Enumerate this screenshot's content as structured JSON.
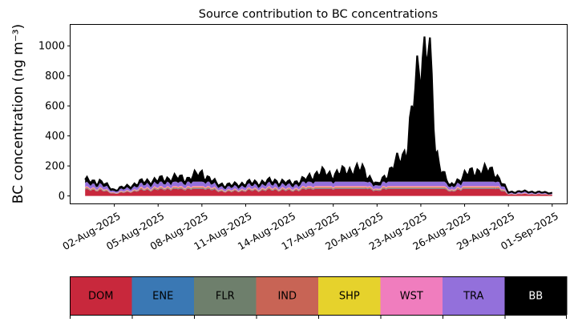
{
  "chart_data": {
    "type": "area",
    "stacked": true,
    "title": "Source contribution to BC concentrations",
    "ylabel": "BC concentration (ng m⁻³)",
    "xlabel": "",
    "x_start": "2025-07-31",
    "x_end": "2025-09-01",
    "xlim": [
      "2025-07-30",
      "2025-09-02"
    ],
    "ylim": [
      -50,
      1140
    ],
    "x_ticks": [
      "02-Aug-2025",
      "05-Aug-2025",
      "08-Aug-2025",
      "11-Aug-2025",
      "14-Aug-2025",
      "17-Aug-2025",
      "20-Aug-2025",
      "23-Aug-2025",
      "26-Aug-2025",
      "29-Aug-2025",
      "01-Sep-2025"
    ],
    "y_ticks": [
      0,
      200,
      400,
      600,
      800,
      1000
    ],
    "total_profile": [
      [
        "2025-07-31",
        100
      ],
      [
        "2025-08-01",
        95
      ],
      [
        "2025-08-02",
        40
      ],
      [
        "2025-08-03",
        65
      ],
      [
        "2025-08-04",
        95
      ],
      [
        "2025-08-05",
        105
      ],
      [
        "2025-08-06",
        120
      ],
      [
        "2025-08-07",
        115
      ],
      [
        "2025-08-08",
        150
      ],
      [
        "2025-08-09",
        80
      ],
      [
        "2025-08-10",
        70
      ],
      [
        "2025-08-11",
        85
      ],
      [
        "2025-08-12",
        90
      ],
      [
        "2025-08-13",
        100
      ],
      [
        "2025-08-14",
        85
      ],
      [
        "2025-08-15",
        105
      ],
      [
        "2025-08-16",
        155
      ],
      [
        "2025-08-17",
        140
      ],
      [
        "2025-08-18",
        170
      ],
      [
        "2025-08-19",
        175
      ],
      [
        "2025-08-20",
        70
      ],
      [
        "2025-08-21",
        180
      ],
      [
        "2025-08-22",
        300
      ],
      [
        "2025-08-23",
        910
      ],
      [
        "2025-08-23T12:00",
        1080
      ],
      [
        "2025-08-24",
        280
      ],
      [
        "2025-08-25",
        60
      ],
      [
        "2025-08-26",
        140
      ],
      [
        "2025-08-27",
        170
      ],
      [
        "2025-08-28",
        165
      ],
      [
        "2025-08-29",
        25
      ],
      [
        "2025-08-30",
        30
      ],
      [
        "2025-08-31",
        25
      ],
      [
        "2025-09-01",
        20
      ]
    ],
    "series": [
      {
        "name": "DOM",
        "color": "#c8283c"
      },
      {
        "name": "ENE",
        "color": "#3a78b4"
      },
      {
        "name": "FLR",
        "color": "#6e7f6c"
      },
      {
        "name": "IND",
        "color": "#c86455"
      },
      {
        "name": "SHP",
        "color": "#e6d22c"
      },
      {
        "name": "WST",
        "color": "#f07dbe"
      },
      {
        "name": "TRA",
        "color": "#9370db"
      },
      {
        "name": "BB",
        "color": "#000000"
      }
    ]
  }
}
